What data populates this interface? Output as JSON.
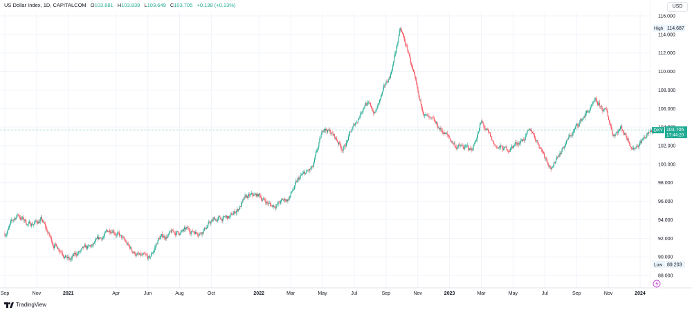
{
  "header": {
    "title": "US Dollar Index, 1D, CAPITALCOM",
    "o_label": "O",
    "o": "103.681",
    "h_label": "H",
    "h": "103.839",
    "l_label": "L",
    "l": "103.649",
    "c_label": "C",
    "c": "103.705",
    "change": "+0.138 (+0.13%)"
  },
  "currency": "USD",
  "brand": "TradingView",
  "colors": {
    "up": "#22ab94",
    "down": "#f7525f",
    "line": "#22ab94"
  },
  "chart_data": {
    "type": "candlestick",
    "symbol": "DXY",
    "last_price": 103.705,
    "last_price_label": "103.705",
    "countdown": "17:44:20",
    "high_label": "High",
    "high": "114.687",
    "high_value": 114.687,
    "low_label": "Low",
    "low": "89.203",
    "low_value": 89.203,
    "ylim": [
      87,
      117
    ],
    "yticks": [
      "88.000",
      "90.000",
      "92.000",
      "94.000",
      "96.000",
      "98.000",
      "100.000",
      "102.000",
      "104.000",
      "106.000",
      "108.000",
      "110.000",
      "112.000",
      "114.000",
      "116.000"
    ],
    "xticks": [
      {
        "m": 0,
        "label": "Sep"
      },
      {
        "m": 2,
        "label": "Nov"
      },
      {
        "m": 4,
        "label": "2021"
      },
      {
        "m": 7,
        "label": "Apr"
      },
      {
        "m": 9,
        "label": "Jun"
      },
      {
        "m": 11,
        "label": "Aug"
      },
      {
        "m": 13,
        "label": "Oct"
      },
      {
        "m": 16,
        "label": "2022"
      },
      {
        "m": 18,
        "label": "Mar"
      },
      {
        "m": 20,
        "label": "May"
      },
      {
        "m": 22,
        "label": "Jul"
      },
      {
        "m": 24,
        "label": "Sep"
      },
      {
        "m": 26,
        "label": "Nov"
      },
      {
        "m": 28,
        "label": "2023"
      },
      {
        "m": 30,
        "label": "Mar"
      },
      {
        "m": 32,
        "label": "May"
      },
      {
        "m": 34,
        "label": "Jul"
      },
      {
        "m": 36,
        "label": "Sep"
      },
      {
        "m": 38,
        "label": "Nov"
      },
      {
        "m": 40,
        "label": "2024"
      }
    ],
    "path_months": [
      0,
      0.8,
      1.5,
      2.3,
      3,
      3.6,
      4.1,
      4.6,
      5.5,
      6.8,
      7.2,
      7.8,
      8.5,
      9.1,
      9.7,
      10.5,
      11.5,
      12.3,
      13.2,
      14.2,
      15.2,
      16,
      16.8,
      17.8,
      18.6,
      19.4,
      20.1,
      20.5,
      21.3,
      22.2,
      22.7,
      23.3,
      24.3,
      24.9,
      25.5,
      26.1,
      26.8,
      27.6,
      28.4,
      29.4,
      30,
      30.8,
      31.6,
      32.4,
      33.2,
      34.5,
      34.8,
      35.6,
      36.6,
      37.2,
      37.9,
      38.3,
      38.8,
      39.6,
      40.2,
      40.9
    ],
    "path_close": [
      92.5,
      94.6,
      93.5,
      94,
      91.5,
      90.8,
      89.6,
      90.4,
      91,
      93.2,
      92.3,
      91,
      90,
      89.6,
      92,
      92.5,
      92.8,
      92.8,
      94,
      94.2,
      96.3,
      96.6,
      95.5,
      96.2,
      98.5,
      99.5,
      104,
      103.5,
      101.7,
      104.8,
      106.8,
      105.5,
      109.8,
      114.5,
      111.5,
      106.5,
      104.5,
      103.5,
      102,
      101.5,
      104.5,
      102,
      101.5,
      102.5,
      103.5,
      99.5,
      101,
      103,
      105.5,
      106.5,
      105.5,
      103.3,
      104,
      101.8,
      102.8,
      103.7
    ]
  }
}
